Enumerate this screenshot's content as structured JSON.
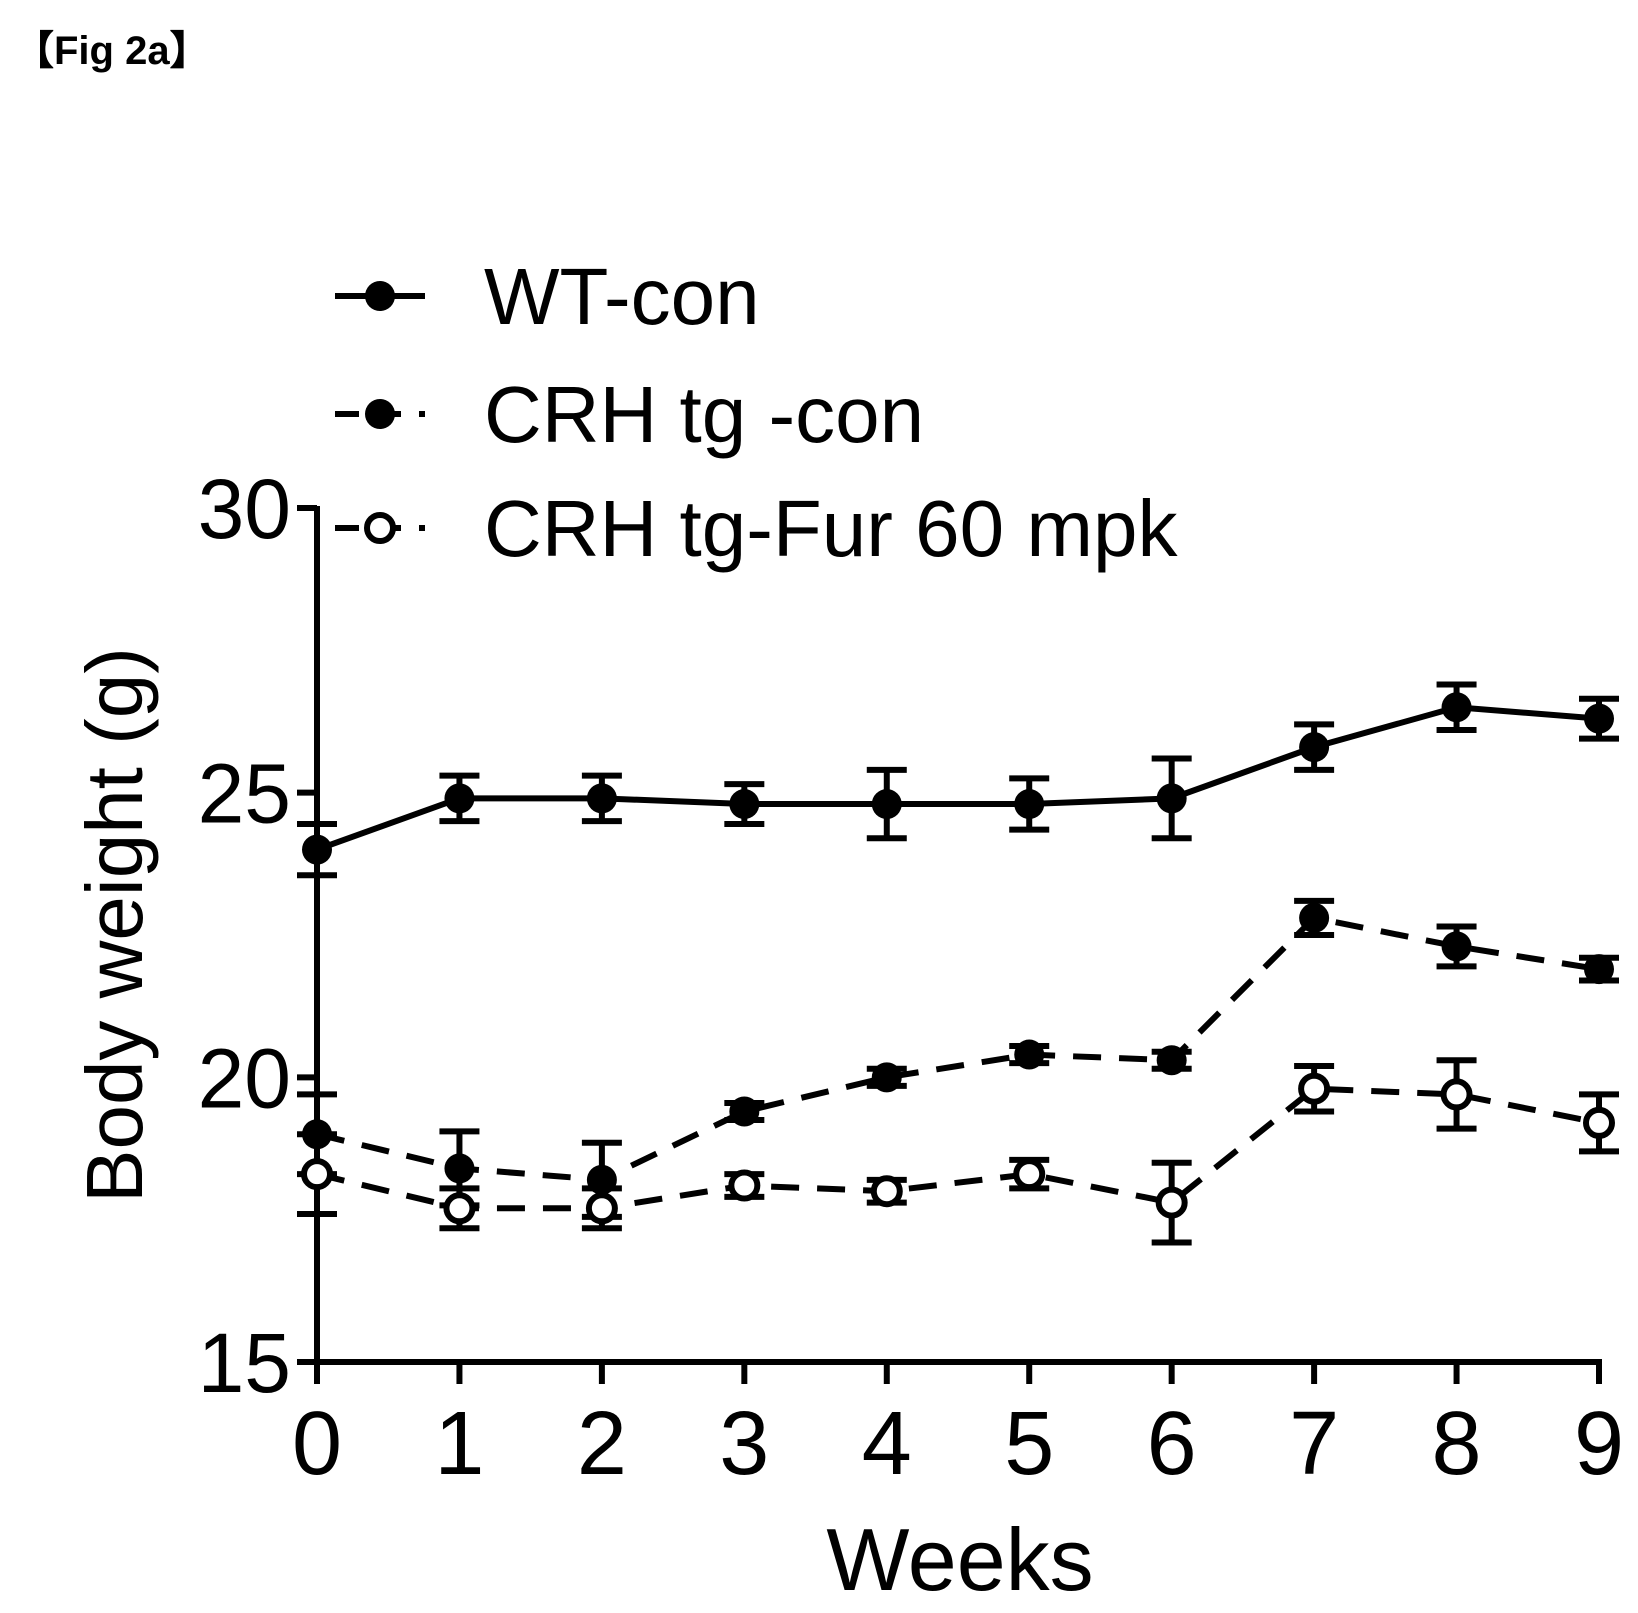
{
  "figure_label": "【Fig 2a】",
  "chart_data": {
    "type": "line",
    "title": "",
    "xlabel": "Weeks",
    "ylabel": "Body weight (g)",
    "x": [
      0,
      1,
      2,
      3,
      4,
      5,
      6,
      7,
      8,
      9
    ],
    "xticks": [
      "0",
      "1",
      "2",
      "3",
      "4",
      "5",
      "6",
      "7",
      "8",
      "9"
    ],
    "xlim": [
      0,
      9
    ],
    "ylim": [
      15,
      30
    ],
    "yticks": [
      "15",
      "20",
      "25",
      "30"
    ],
    "grid": false,
    "legend_position": "top-left",
    "series": [
      {
        "name": "WT-con",
        "line": "solid",
        "marker": "filled-circle",
        "values": [
          24.0,
          24.9,
          24.9,
          24.8,
          24.8,
          24.8,
          24.9,
          25.8,
          26.5,
          26.3
        ],
        "errors": [
          0.45,
          0.4,
          0.4,
          0.35,
          0.6,
          0.45,
          0.7,
          0.4,
          0.4,
          0.35
        ]
      },
      {
        "name": "CRH tg -con",
        "line": "dashed",
        "marker": "filled-circle",
        "values": [
          19.0,
          18.4,
          18.2,
          19.4,
          20.0,
          20.4,
          20.3,
          22.8,
          22.3,
          21.9
        ],
        "errors": [
          0.7,
          0.65,
          0.65,
          0.15,
          0.15,
          0.15,
          0.15,
          0.3,
          0.35,
          0.2
        ]
      },
      {
        "name": "CRH tg-Fur 60 mpk",
        "line": "dashed",
        "marker": "open-circle",
        "values": [
          18.3,
          17.7,
          17.7,
          18.1,
          18.0,
          18.3,
          17.8,
          19.8,
          19.7,
          19.2
        ],
        "errors": [
          0.7,
          0.35,
          0.35,
          0.2,
          0.2,
          0.25,
          0.7,
          0.4,
          0.6,
          0.5
        ]
      }
    ]
  }
}
